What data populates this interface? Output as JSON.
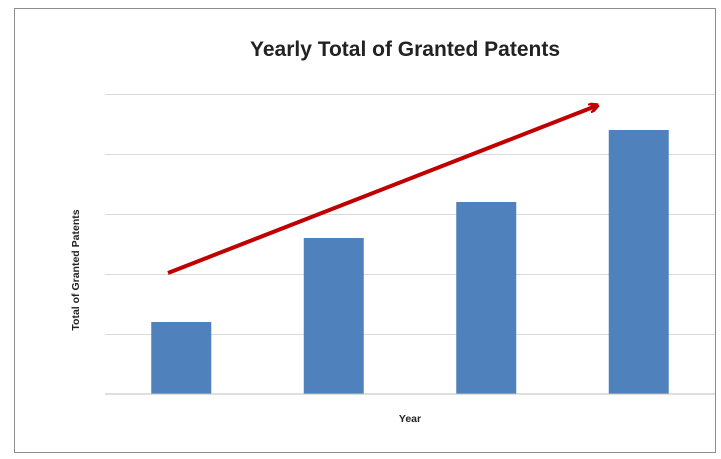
{
  "chart_data": {
    "type": "bar",
    "title": "Yearly Total of Granted Patents",
    "xlabel": "Year",
    "ylabel": "Total of Granted Patents",
    "categories": [
      "",
      "",
      "",
      ""
    ],
    "series": [
      {
        "values": [
          12,
          26,
          32,
          44
        ]
      }
    ],
    "ylim": [
      0,
      50
    ],
    "grid": true,
    "tick_labels_visible": false,
    "bar_color": "#4f81bd",
    "annotations": [
      {
        "type": "arrow",
        "color": "#c00000",
        "description": "upward trend arrow"
      }
    ]
  }
}
